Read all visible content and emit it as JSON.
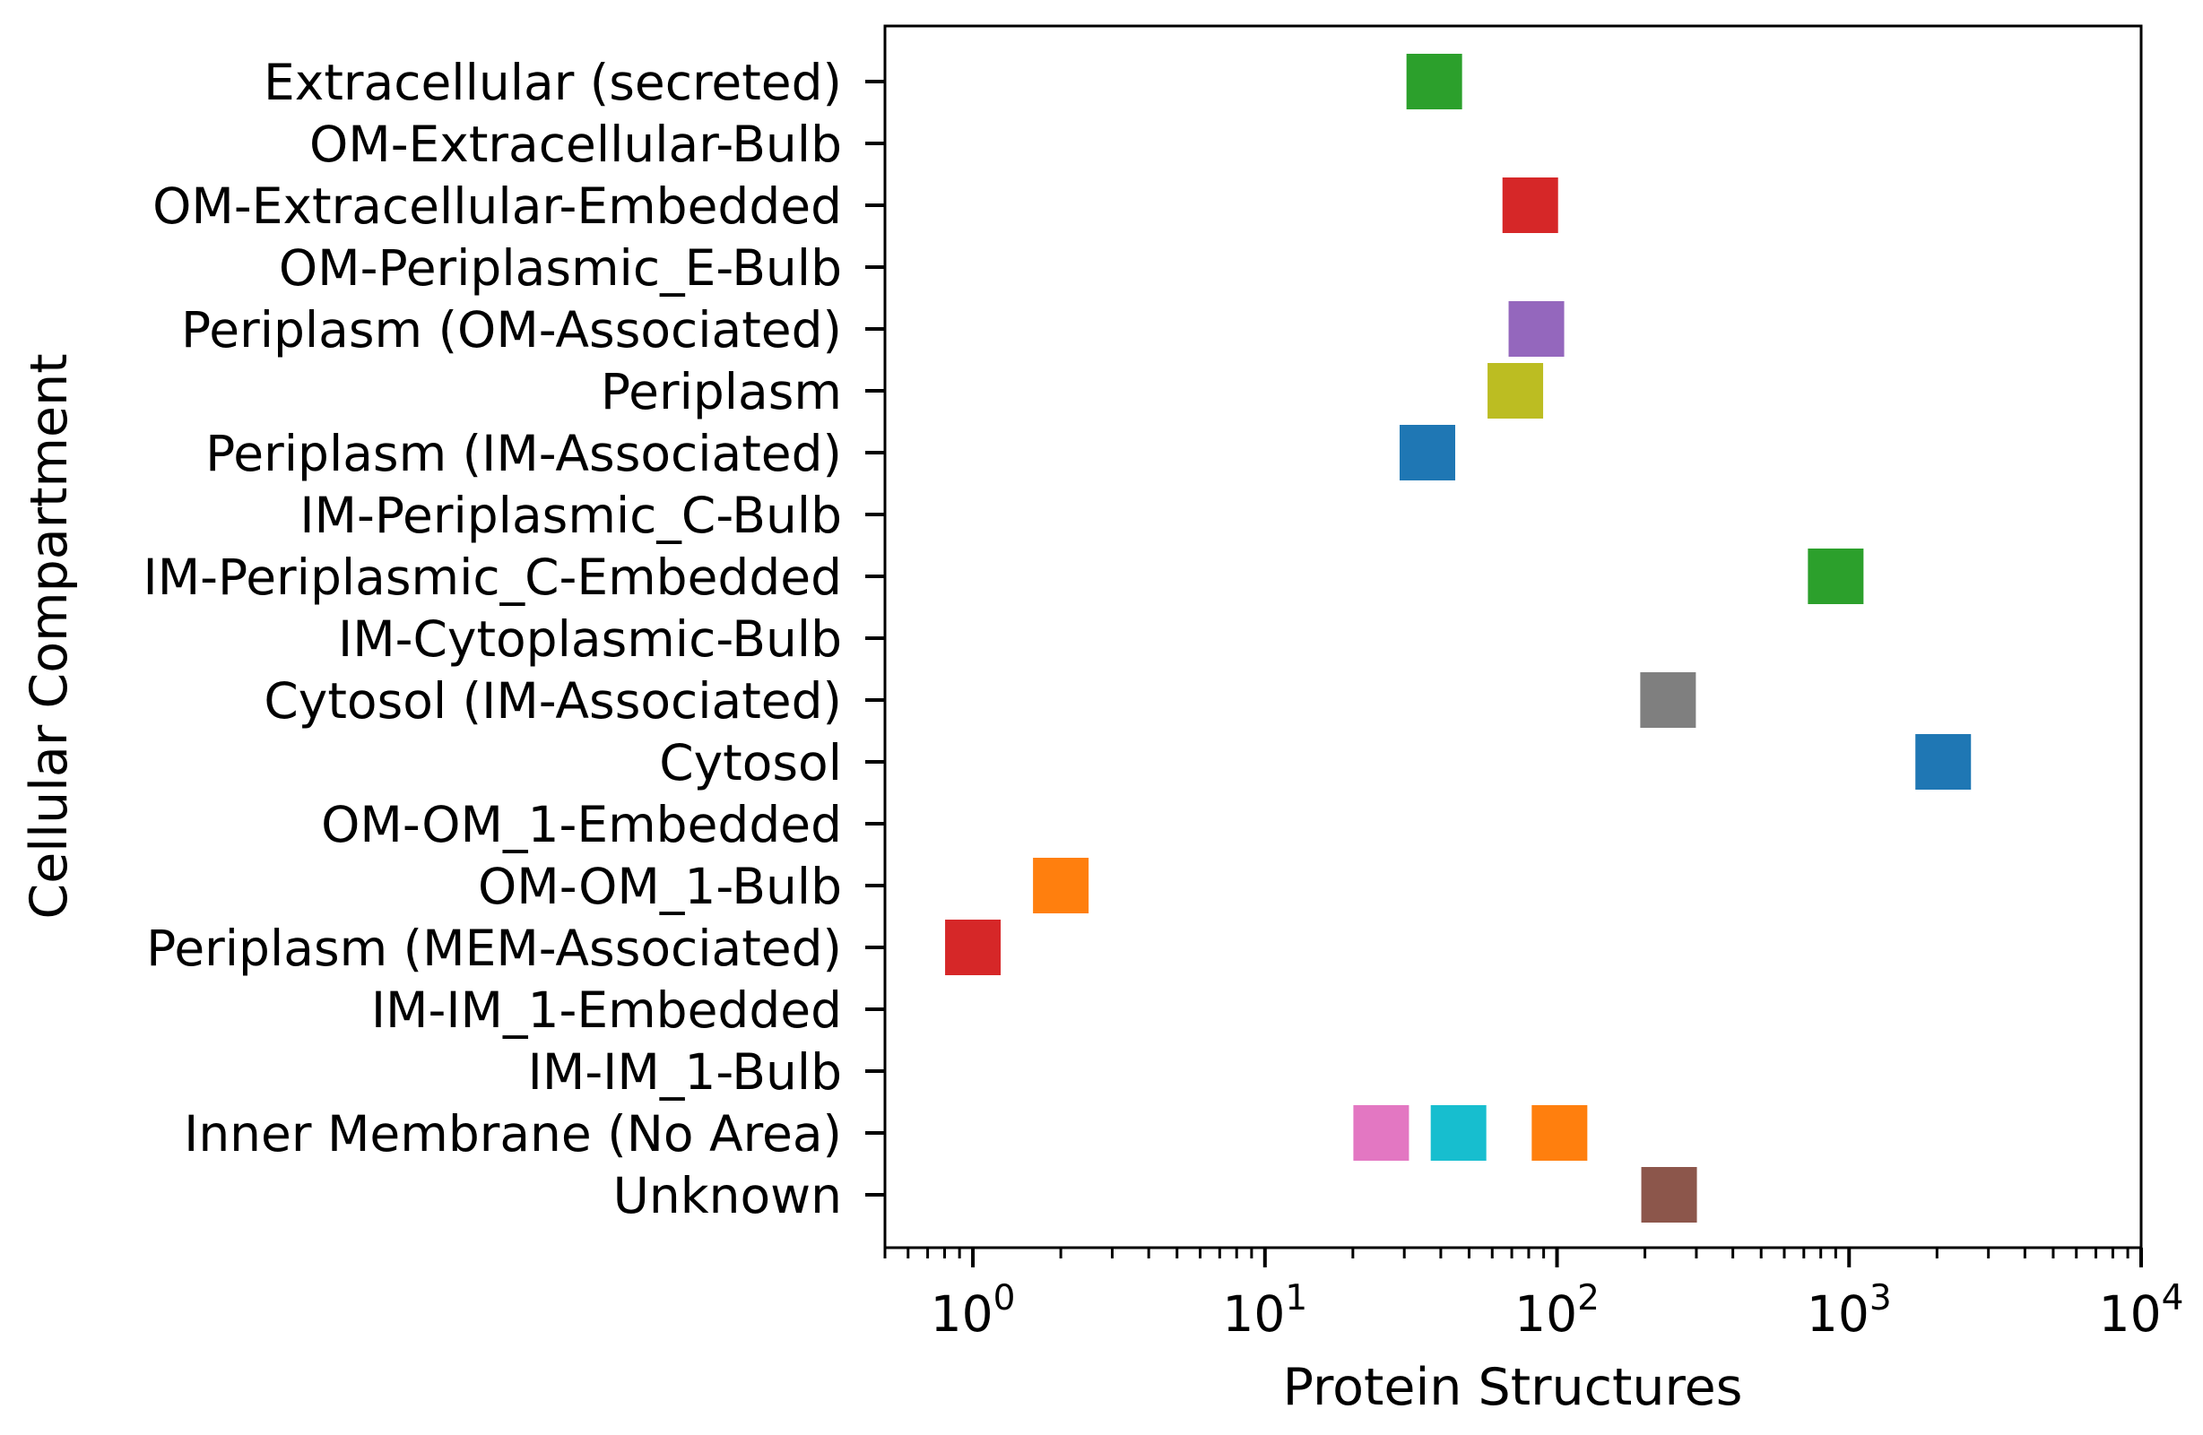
{
  "chart_data": {
    "type": "scatter",
    "title": "",
    "xlabel": "Protein Structures",
    "ylabel": "Cellular Compartment",
    "xscale": "log",
    "xlim": [
      0.5,
      10000
    ],
    "x_tick_labels": [
      {
        "base": "10",
        "exp": "0"
      },
      {
        "base": "10",
        "exp": "1"
      },
      {
        "base": "10",
        "exp": "2"
      },
      {
        "base": "10",
        "exp": "3"
      },
      {
        "base": "10",
        "exp": "4"
      }
    ],
    "categories": [
      "Extracellular (secreted)",
      "OM-Extracellular-Bulb",
      "OM-Extracellular-Embedded",
      "OM-Periplasmic_E-Bulb",
      "Periplasm (OM-Associated)",
      "Periplasm",
      "Periplasm (IM-Associated)",
      "IM-Periplasmic_C-Bulb",
      "IM-Periplasmic_C-Embedded",
      "IM-Cytoplasmic-Bulb",
      "Cytosol (IM-Associated)",
      "Cytosol",
      "OM-OM_1-Embedded",
      "OM-OM_1-Bulb",
      "Periplasm (MEM-Associated)",
      "IM-IM_1-Embedded",
      "IM-IM_1-Bulb",
      "Inner Membrane (No Area)",
      "Unknown"
    ],
    "points": [
      {
        "category": "Extracellular (secreted)",
        "x": 38,
        "color": "#2ca02c"
      },
      {
        "category": "OM-Extracellular-Embedded",
        "x": 81,
        "color": "#d62728"
      },
      {
        "category": "Periplasm (OM-Associated)",
        "x": 85,
        "color": "#9467bd"
      },
      {
        "category": "Periplasm",
        "x": 72,
        "color": "#bcbd22"
      },
      {
        "category": "Periplasm (IM-Associated)",
        "x": 36,
        "color": "#1f77b4"
      },
      {
        "category": "IM-Periplasmic_C-Embedded",
        "x": 900,
        "color": "#2ca02c"
      },
      {
        "category": "Cytosol (IM-Associated)",
        "x": 240,
        "color": "#7f7f7f"
      },
      {
        "category": "Cytosol",
        "x": 2100,
        "color": "#1f77b4"
      },
      {
        "category": "OM-OM_1-Bulb",
        "x": 2,
        "color": "#ff7f0e"
      },
      {
        "category": "Periplasm (MEM-Associated)",
        "x": 1,
        "color": "#d62728"
      },
      {
        "category": "Inner Membrane (No Area)",
        "x": 25,
        "color": "#e377c2"
      },
      {
        "category": "Inner Membrane (No Area)",
        "x": 46,
        "color": "#17becf"
      },
      {
        "category": "Inner Membrane (No Area)",
        "x": 102,
        "color": "#ff7f0e"
      },
      {
        "category": "Unknown",
        "x": 242,
        "color": "#8c564b"
      }
    ],
    "grid": false,
    "legend": "none"
  }
}
